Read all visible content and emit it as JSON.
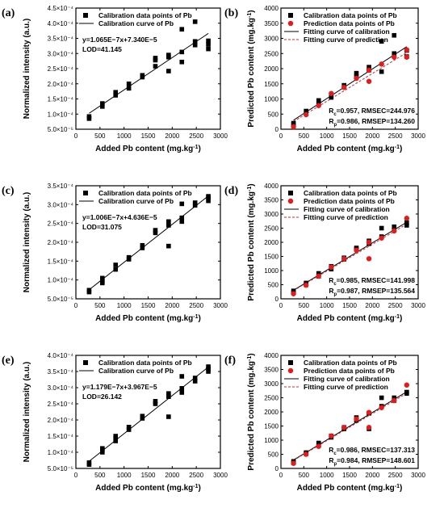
{
  "figure": {
    "panels": [
      {
        "label": "(a)",
        "kind": "calib",
        "ytick_labels": [
          "5.0×10⁻⁵",
          "1.0×10⁻⁴",
          "1.5×10⁻⁴",
          "2.0×10⁻⁴",
          "2.5×10⁻⁴",
          "3.0×10⁻⁴",
          "3.5×10⁻⁴",
          "4.0×10⁻⁴",
          "4.5×10⁻⁴"
        ]
      },
      {
        "label": "(b)",
        "kind": "pred",
        "ytick_labels": [
          "0",
          "500",
          "1000",
          "1500",
          "2000",
          "2500",
          "3000",
          "3500",
          "4000"
        ]
      },
      {
        "label": "(c)",
        "kind": "calib",
        "ytick_labels": [
          "5.0×10⁻⁵",
          "1.0×10⁻⁴",
          "1.5×10⁻⁴",
          "2.0×10⁻⁴",
          "2.5×10⁻⁴",
          "3.0×10⁻⁴",
          "3.5×10⁻⁴"
        ]
      },
      {
        "label": "(d)",
        "kind": "pred",
        "ytick_labels": [
          "0",
          "500",
          "1000",
          "1500",
          "2000",
          "2500",
          "3000",
          "3500",
          "4000"
        ]
      },
      {
        "label": "(e)",
        "kind": "calib",
        "ytick_labels": [
          "5.0×10⁻⁵",
          "1.0×10⁻⁴",
          "1.5×10⁻⁴",
          "2.0×10⁻⁴",
          "2.5×10⁻⁴",
          "3.0×10⁻⁴",
          "3.5×10⁻⁴",
          "4.0×10⁻⁴"
        ]
      },
      {
        "label": "(f)",
        "kind": "pred",
        "ytick_labels": [
          "0",
          "500",
          "1000",
          "1500",
          "2000",
          "2500",
          "3000",
          "3500",
          "4000"
        ]
      }
    ],
    "xtick_labels": [
      "0",
      "500",
      "1000",
      "1500",
      "2000",
      "2500",
      "3000"
    ],
    "colors": {
      "calibration": "#000000",
      "prediction": "#e41a1c",
      "fit_calibration": "#000000",
      "fit_prediction": "#d62728"
    }
  },
  "chart_data": [
    {
      "type": "scatter",
      "panel": "(a)",
      "xlabel": "Added Pb content (mg.kg⁻¹)",
      "ylabel": "Normalized intensity (a.u.)",
      "xlim": [
        0,
        3000
      ],
      "ylim": [
        5e-05,
        0.00045
      ],
      "legend": [
        "Calibration data points of Pb",
        "Calibration curve of Pb"
      ],
      "annotations": [
        "y=1.065E−7x+7.340E−5",
        "LOD=41.145"
      ],
      "fit": {
        "slope": 1.065e-07,
        "intercept": 7.34e-05
      },
      "series": [
        {
          "name": "Calibration data points of Pb",
          "x": [
            275,
            275,
            550,
            550,
            825,
            825,
            1100,
            1100,
            1380,
            1380,
            1650,
            1650,
            1650,
            1925,
            1925,
            1925,
            2200,
            2200,
            2200,
            2475,
            2475,
            2475,
            2750,
            2750,
            2750
          ],
          "y": [
            8.5e-05,
            9.2e-05,
            0.000125,
            0.000135,
            0.000162,
            0.000172,
            0.000185,
            0.0002,
            0.000222,
            0.000228,
            0.000258,
            0.000278,
            0.000285,
            0.000242,
            0.000288,
            0.000295,
            0.000272,
            0.000305,
            0.00038,
            0.000328,
            0.00034,
            0.000405,
            0.000315,
            0.00033,
            0.000342
          ]
        }
      ]
    },
    {
      "type": "scatter",
      "panel": "(b)",
      "xlabel": "Added Pb content (mg.kg⁻¹)",
      "ylabel": "Predicted Pb content (mg.kg⁻¹)",
      "xlim": [
        0,
        3000
      ],
      "ylim": [
        0,
        4000
      ],
      "legend": [
        "Calibration data points of Pb",
        "Prediction data points of Pb",
        "Fitting curve of calibration",
        "Fitting curve of prediction"
      ],
      "annotations": [
        "Rc=0.957, RMSEC=244.976",
        "Rp=0.986, RMSEP=134.260"
      ],
      "series": [
        {
          "name": "Calibration data points of Pb",
          "x": [
            275,
            275,
            550,
            825,
            825,
            1100,
            1100,
            1380,
            1650,
            1650,
            1925,
            1925,
            2200,
            2200,
            2475,
            2475,
            2750,
            2750
          ],
          "y": [
            150,
            200,
            600,
            850,
            950,
            1050,
            1150,
            1450,
            1750,
            1850,
            1950,
            2050,
            1900,
            2900,
            2500,
            3100,
            2400,
            2600
          ]
        },
        {
          "name": "Prediction data points of Pb",
          "x": [
            275,
            550,
            825,
            1100,
            1380,
            1650,
            1925,
            1925,
            2200,
            2475,
            2750,
            2750
          ],
          "y": [
            80,
            480,
            780,
            1180,
            1380,
            1680,
            1580,
            1950,
            2150,
            2380,
            2380,
            2620
          ]
        }
      ],
      "fits": [
        {
          "name": "Fitting curve of calibration",
          "slope": 0.98,
          "intercept": 30
        },
        {
          "name": "Fitting curve of prediction",
          "slope": 0.92,
          "intercept": 0
        }
      ]
    },
    {
      "type": "scatter",
      "panel": "(c)",
      "xlabel": "Added Pb content (mg.kg⁻¹)",
      "ylabel": "Normalized intensity (a.u.)",
      "xlim": [
        0,
        3000
      ],
      "ylim": [
        5e-05,
        0.00035
      ],
      "legend": [
        "Calibration data points of Pb",
        "Calibration curve of Pb"
      ],
      "annotations": [
        "y=1.006E−7x+4.636E−5",
        "LOD=31.075"
      ],
      "fit": {
        "slope": 1.006e-07,
        "intercept": 4.636e-05
      },
      "series": [
        {
          "name": "Calibration data points of Pb",
          "x": [
            275,
            275,
            550,
            550,
            550,
            825,
            825,
            1100,
            1100,
            1380,
            1380,
            1650,
            1650,
            1925,
            1925,
            1925,
            2200,
            2200,
            2200,
            2475,
            2475,
            2750,
            2750,
            2750
          ],
          "y": [
            6.8e-05,
            7.3e-05,
            9.2e-05,
            9.8e-05,
            0.000105,
            0.000128,
            0.00014,
            0.000155,
            0.00016,
            0.000185,
            0.000192,
            0.000225,
            0.000232,
            0.00019,
            0.000245,
            0.000255,
            0.000255,
            0.000265,
            0.000302,
            0.000298,
            0.000305,
            0.00031,
            0.000318,
            0.000322
          ]
        }
      ]
    },
    {
      "type": "scatter",
      "panel": "(d)",
      "xlabel": "Added Pb content (mg.kg⁻¹)",
      "ylabel": "Predicted Pb content (mg.kg⁻¹)",
      "xlim": [
        0,
        3000
      ],
      "ylim": [
        0,
        4000
      ],
      "legend": [
        "Calibration data points of Pb",
        "Prediction data points of Pb",
        "Fitting curve of calibration",
        "Fitting curve of prediction"
      ],
      "annotations": [
        "Rc=0.985, RMSEC=141.998",
        "Rp=0.987, RMSEP=135.564"
      ],
      "series": [
        {
          "name": "Calibration data points of Pb",
          "x": [
            275,
            275,
            550,
            550,
            825,
            825,
            1100,
            1100,
            1380,
            1380,
            1650,
            1650,
            1925,
            1925,
            2200,
            2200,
            2475,
            2475,
            2750,
            2750
          ],
          "y": [
            230,
            280,
            500,
            560,
            800,
            900,
            1050,
            1150,
            1400,
            1450,
            1750,
            1800,
            1950,
            2050,
            2200,
            2500,
            2450,
            2550,
            2600,
            2700
          ]
        },
        {
          "name": "Prediction data points of Pb",
          "x": [
            275,
            550,
            825,
            1100,
            1380,
            1650,
            1925,
            1925,
            2200,
            2475,
            2750
          ],
          "y": [
            180,
            480,
            800,
            1120,
            1420,
            1720,
            1420,
            2000,
            2150,
            2400,
            2850
          ]
        }
      ],
      "fits": [
        {
          "name": "Fitting curve of calibration",
          "slope": 0.97,
          "intercept": 40
        },
        {
          "name": "Fitting curve of prediction",
          "slope": 0.95,
          "intercept": 30
        }
      ]
    },
    {
      "type": "scatter",
      "panel": "(e)",
      "xlabel": "Added Pb content (mg.kg⁻¹)",
      "ylabel": "Normalized intensity (a.u.)",
      "xlim": [
        0,
        3000
      ],
      "ylim": [
        5e-05,
        0.0004
      ],
      "legend": [
        "Calibration data points of Pb",
        "Calibration curve of Pb"
      ],
      "annotations": [
        "y=1.179E−7x+3.967E−5",
        "LOD=26.142"
      ],
      "fit": {
        "slope": 1.179e-07,
        "intercept": 3.967e-05
      },
      "series": [
        {
          "name": "Calibration data points of Pb",
          "x": [
            275,
            275,
            550,
            550,
            550,
            825,
            825,
            825,
            1100,
            1100,
            1380,
            1380,
            1650,
            1650,
            1925,
            1925,
            1925,
            2200,
            2200,
            2200,
            2475,
            2475,
            2750,
            2750,
            2750
          ],
          "y": [
            6.2e-05,
            6.8e-05,
            0.0001,
            0.000108,
            0.000112,
            0.000135,
            0.000143,
            0.00015,
            0.00017,
            0.000178,
            0.000205,
            0.000212,
            0.00025,
            0.000258,
            0.00021,
            0.000272,
            0.000282,
            0.000285,
            0.000298,
            0.000335,
            0.00032,
            0.00033,
            0.00035,
            0.000358,
            0.000365
          ]
        }
      ]
    },
    {
      "type": "scatter",
      "panel": "(f)",
      "xlabel": "Added Pb content (mg.kg⁻¹)",
      "ylabel": "Predicted Pb content (mg.kg⁻¹)",
      "xlim": [
        0,
        3000
      ],
      "ylim": [
        0,
        4000
      ],
      "legend": [
        "Calibration data points of Pb",
        "Prediction data points of Pb",
        "Fitting curve of calibration",
        "Fitting curve of prediction"
      ],
      "annotations": [
        "Rc=0.986, RMSEC=137.313",
        "Rp=0.984, RMSEP=148.601"
      ],
      "series": [
        {
          "name": "Calibration data points of Pb",
          "x": [
            275,
            275,
            550,
            550,
            825,
            825,
            1100,
            1100,
            1380,
            1380,
            1650,
            1650,
            1925,
            1925,
            2200,
            2200,
            2475,
            2475,
            2750,
            2750
          ],
          "y": [
            200,
            250,
            520,
            560,
            850,
            900,
            1100,
            1150,
            1400,
            1450,
            1700,
            1800,
            1400,
            1950,
            2200,
            2500,
            2400,
            2500,
            2650,
            2700
          ]
        },
        {
          "name": "Prediction data points of Pb",
          "x": [
            275,
            550,
            825,
            1100,
            1380,
            1650,
            1925,
            1925,
            2200,
            2475,
            2750
          ],
          "y": [
            180,
            500,
            780,
            1150,
            1450,
            1750,
            1450,
            1980,
            2150,
            2400,
            2950
          ]
        }
      ],
      "fits": [
        {
          "name": "Fitting curve of calibration",
          "slope": 0.975,
          "intercept": 30
        },
        {
          "name": "Fitting curve of prediction",
          "slope": 0.96,
          "intercept": 20
        }
      ]
    }
  ]
}
